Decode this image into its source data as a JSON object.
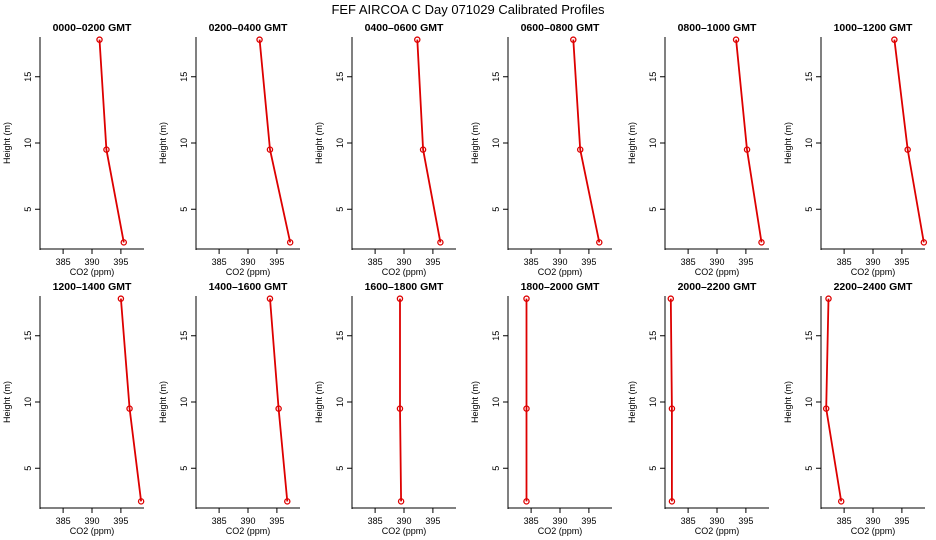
{
  "figure": {
    "title": "FEF AIRCOA C  Day 071029  Calibrated Profiles",
    "xlabel": "CO2 (ppm)",
    "ylabel": "Height (m)",
    "colors": {
      "line": "#dd0000",
      "axis": "#000000"
    }
  },
  "chart_data": [
    {
      "type": "line",
      "title": "0000–0200 GMT",
      "x": [
        395.5,
        392.5,
        391.3
      ],
      "y": [
        2.5,
        9.5,
        17.8
      ],
      "xlim": [
        381,
        399
      ],
      "ylim": [
        2,
        18
      ],
      "xticks": [
        385,
        390,
        395
      ],
      "yticks": [
        5,
        10,
        15
      ]
    },
    {
      "type": "line",
      "title": "0200–0400 GMT",
      "x": [
        397.3,
        393.8,
        392.0
      ],
      "y": [
        2.5,
        9.5,
        17.8
      ],
      "xlim": [
        381,
        399
      ],
      "ylim": [
        2,
        18
      ],
      "xticks": [
        385,
        390,
        395
      ],
      "yticks": [
        5,
        10,
        15
      ]
    },
    {
      "type": "line",
      "title": "0400–0600 GMT",
      "x": [
        396.3,
        393.3,
        392.3
      ],
      "y": [
        2.5,
        9.5,
        17.8
      ],
      "xlim": [
        381,
        399
      ],
      "ylim": [
        2,
        18
      ],
      "xticks": [
        385,
        390,
        395
      ],
      "yticks": [
        5,
        10,
        15
      ]
    },
    {
      "type": "line",
      "title": "0600–0800 GMT",
      "x": [
        396.8,
        393.5,
        392.3
      ],
      "y": [
        2.5,
        9.5,
        17.8
      ],
      "xlim": [
        381,
        399
      ],
      "ylim": [
        2,
        18
      ],
      "xticks": [
        385,
        390,
        395
      ],
      "yticks": [
        5,
        10,
        15
      ]
    },
    {
      "type": "line",
      "title": "0800–1000 GMT",
      "x": [
        397.7,
        395.2,
        393.3
      ],
      "y": [
        2.5,
        9.5,
        17.8
      ],
      "xlim": [
        381,
        399
      ],
      "ylim": [
        2,
        18
      ],
      "xticks": [
        385,
        390,
        395
      ],
      "yticks": [
        5,
        10,
        15
      ]
    },
    {
      "type": "line",
      "title": "1000–1200 GMT",
      "x": [
        398.8,
        396.0,
        393.7
      ],
      "y": [
        2.5,
        9.5,
        17.8
      ],
      "xlim": [
        381,
        399
      ],
      "ylim": [
        2,
        18
      ],
      "xticks": [
        385,
        390,
        395
      ],
      "yticks": [
        5,
        10,
        15
      ]
    },
    {
      "type": "line",
      "title": "1200–1400 GMT",
      "x": [
        398.5,
        396.5,
        395.0
      ],
      "y": [
        2.5,
        9.5,
        17.8
      ],
      "xlim": [
        381,
        399
      ],
      "ylim": [
        2,
        18
      ],
      "xticks": [
        385,
        390,
        395
      ],
      "yticks": [
        5,
        10,
        15
      ]
    },
    {
      "type": "line",
      "title": "1400–1600 GMT",
      "x": [
        396.8,
        395.3,
        393.8
      ],
      "y": [
        2.5,
        9.5,
        17.8
      ],
      "xlim": [
        381,
        399
      ],
      "ylim": [
        2,
        18
      ],
      "xticks": [
        385,
        390,
        395
      ],
      "yticks": [
        5,
        10,
        15
      ]
    },
    {
      "type": "line",
      "title": "1600–1800 GMT",
      "x": [
        389.5,
        389.3,
        389.3
      ],
      "y": [
        2.5,
        9.5,
        17.8
      ],
      "xlim": [
        381,
        399
      ],
      "ylim": [
        2,
        18
      ],
      "xticks": [
        385,
        390,
        395
      ],
      "yticks": [
        5,
        10,
        15
      ]
    },
    {
      "type": "line",
      "title": "1800–2000 GMT",
      "x": [
        384.2,
        384.2,
        384.2
      ],
      "y": [
        2.5,
        9.5,
        17.8
      ],
      "xlim": [
        381,
        399
      ],
      "ylim": [
        2,
        18
      ],
      "xticks": [
        385,
        390,
        395
      ],
      "yticks": [
        5,
        10,
        15
      ]
    },
    {
      "type": "line",
      "title": "2000–2200 GMT",
      "x": [
        382.2,
        382.2,
        382.0
      ],
      "y": [
        2.5,
        9.5,
        17.8
      ],
      "xlim": [
        381,
        399
      ],
      "ylim": [
        2,
        18
      ],
      "xticks": [
        385,
        390,
        395
      ],
      "yticks": [
        5,
        10,
        15
      ]
    },
    {
      "type": "line",
      "title": "2200–2400 GMT",
      "x": [
        384.5,
        381.9,
        382.3
      ],
      "y": [
        2.5,
        9.5,
        17.8
      ],
      "xlim": [
        381,
        399
      ],
      "ylim": [
        2,
        18
      ],
      "xticks": [
        385,
        390,
        395
      ],
      "yticks": [
        5,
        10,
        15
      ]
    }
  ]
}
